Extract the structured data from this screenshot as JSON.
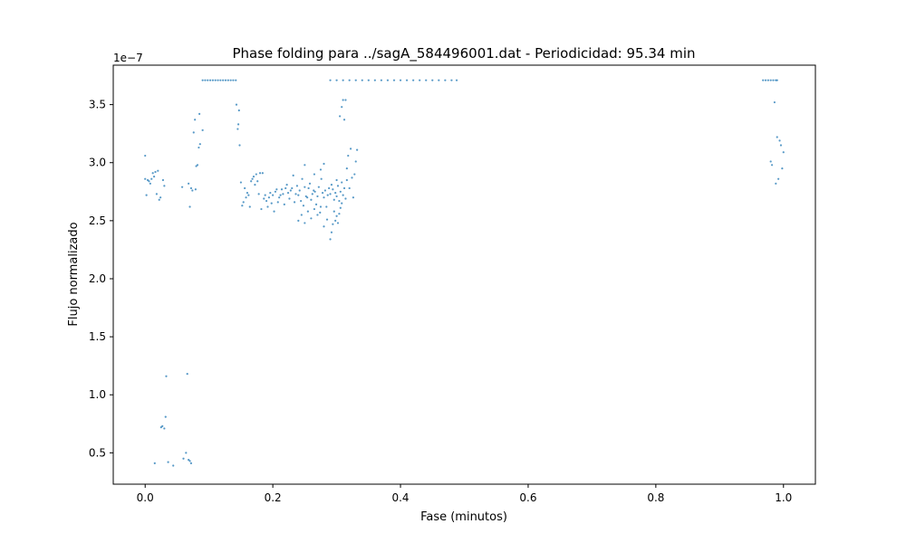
{
  "chart_data": {
    "type": "scatter",
    "title": "Phase folding para ../sagA_584496001.dat - Periodicidad: 95.34 min",
    "xlabel": "Fase (minutos)",
    "ylabel": "Flujo normalizado",
    "y_scale_label": "1e−7",
    "xlim": [
      -0.05,
      1.05
    ],
    "ylim": [
      0.23,
      3.84
    ],
    "x_ticks": [
      0.0,
      0.2,
      0.4,
      0.6,
      0.8,
      1.0
    ],
    "x_tick_labels": [
      "0.0",
      "0.2",
      "0.4",
      "0.6",
      "0.8",
      "1.0"
    ],
    "y_ticks": [
      0.5,
      1.0,
      1.5,
      2.0,
      2.5,
      3.0,
      3.5
    ],
    "y_tick_labels": [
      "0.5",
      "1.0",
      "1.5",
      "2.0",
      "2.5",
      "3.0",
      "3.5"
    ],
    "grid": false,
    "marker_color": "#1f77b4",
    "series": [
      {
        "points": [
          [
            0.0,
            3.06
          ],
          [
            0.0,
            2.86
          ],
          [
            0.002,
            2.72
          ],
          [
            0.004,
            2.85
          ],
          [
            0.006,
            2.84
          ],
          [
            0.008,
            2.82
          ],
          [
            0.01,
            2.86
          ],
          [
            0.012,
            2.91
          ],
          [
            0.014,
            2.88
          ],
          [
            0.016,
            2.92
          ],
          [
            0.018,
            2.73
          ],
          [
            0.02,
            2.93
          ],
          [
            0.022,
            2.68
          ],
          [
            0.024,
            2.7
          ],
          [
            0.028,
            2.85
          ],
          [
            0.03,
            2.8
          ],
          [
            0.015,
            0.41
          ],
          [
            0.025,
            0.72
          ],
          [
            0.027,
            0.73
          ],
          [
            0.03,
            0.71
          ],
          [
            0.032,
            0.81
          ],
          [
            0.033,
            1.16
          ],
          [
            0.036,
            0.42
          ],
          [
            0.044,
            0.39
          ],
          [
            0.058,
            2.79
          ],
          [
            0.06,
            0.45
          ],
          [
            0.064,
            0.5
          ],
          [
            0.066,
            1.18
          ],
          [
            0.068,
            0.44
          ],
          [
            0.07,
            0.43
          ],
          [
            0.072,
            0.41
          ],
          [
            0.068,
            2.82
          ],
          [
            0.07,
            2.62
          ],
          [
            0.072,
            2.78
          ],
          [
            0.074,
            2.76
          ],
          [
            0.076,
            3.26
          ],
          [
            0.078,
            3.37
          ],
          [
            0.079,
            2.77
          ],
          [
            0.08,
            2.97
          ],
          [
            0.082,
            2.98
          ],
          [
            0.084,
            3.13
          ],
          [
            0.085,
            3.42
          ],
          [
            0.086,
            3.16
          ],
          [
            0.09,
            3.28
          ],
          [
            0.09,
            3.71
          ],
          [
            0.094,
            3.71
          ],
          [
            0.098,
            3.71
          ],
          [
            0.102,
            3.71
          ],
          [
            0.106,
            3.71
          ],
          [
            0.11,
            3.71
          ],
          [
            0.114,
            3.71
          ],
          [
            0.118,
            3.71
          ],
          [
            0.122,
            3.71
          ],
          [
            0.126,
            3.71
          ],
          [
            0.13,
            3.71
          ],
          [
            0.134,
            3.71
          ],
          [
            0.138,
            3.71
          ],
          [
            0.142,
            3.71
          ],
          [
            0.143,
            3.5
          ],
          [
            0.145,
            3.29
          ],
          [
            0.146,
            3.33
          ],
          [
            0.147,
            3.45
          ],
          [
            0.148,
            3.15
          ],
          [
            0.15,
            2.83
          ],
          [
            0.152,
            2.63
          ],
          [
            0.154,
            2.66
          ],
          [
            0.156,
            2.78
          ],
          [
            0.158,
            2.7
          ],
          [
            0.16,
            2.74
          ],
          [
            0.162,
            2.72
          ],
          [
            0.164,
            2.62
          ],
          [
            0.166,
            2.84
          ],
          [
            0.168,
            2.86
          ],
          [
            0.17,
            2.88
          ],
          [
            0.172,
            2.81
          ],
          [
            0.174,
            2.9
          ],
          [
            0.176,
            2.84
          ],
          [
            0.178,
            2.73
          ],
          [
            0.18,
            2.91
          ],
          [
            0.182,
            2.6
          ],
          [
            0.184,
            2.91
          ],
          [
            0.186,
            2.69
          ],
          [
            0.188,
            2.72
          ],
          [
            0.19,
            2.67
          ],
          [
            0.192,
            2.62
          ],
          [
            0.194,
            2.7
          ],
          [
            0.196,
            2.74
          ],
          [
            0.198,
            2.65
          ],
          [
            0.2,
            2.72
          ],
          [
            0.202,
            2.58
          ],
          [
            0.204,
            2.75
          ],
          [
            0.206,
            2.77
          ],
          [
            0.208,
            2.66
          ],
          [
            0.21,
            2.7
          ],
          [
            0.212,
            2.72
          ],
          [
            0.214,
            2.77
          ],
          [
            0.216,
            2.73
          ],
          [
            0.218,
            2.64
          ],
          [
            0.22,
            2.78
          ],
          [
            0.222,
            2.81
          ],
          [
            0.224,
            2.74
          ],
          [
            0.226,
            2.69
          ],
          [
            0.228,
            2.76
          ],
          [
            0.23,
            2.78
          ],
          [
            0.232,
            2.89
          ],
          [
            0.234,
            2.66
          ],
          [
            0.236,
            2.73
          ],
          [
            0.238,
            2.8
          ],
          [
            0.24,
            2.72
          ],
          [
            0.242,
            2.76
          ],
          [
            0.244,
            2.67
          ],
          [
            0.246,
            2.86
          ],
          [
            0.248,
            2.63
          ],
          [
            0.25,
            2.79
          ],
          [
            0.252,
            2.71
          ],
          [
            0.254,
            2.7
          ],
          [
            0.256,
            2.78
          ],
          [
            0.258,
            2.82
          ],
          [
            0.26,
            2.68
          ],
          [
            0.262,
            2.73
          ],
          [
            0.264,
            2.76
          ],
          [
            0.266,
            2.75
          ],
          [
            0.268,
            2.64
          ],
          [
            0.27,
            2.71
          ],
          [
            0.272,
            2.79
          ],
          [
            0.274,
            2.57
          ],
          [
            0.276,
            2.86
          ],
          [
            0.278,
            2.74
          ],
          [
            0.28,
            2.7
          ],
          [
            0.282,
            2.76
          ],
          [
            0.284,
            2.62
          ],
          [
            0.286,
            2.72
          ],
          [
            0.288,
            2.78
          ],
          [
            0.29,
            2.73
          ],
          [
            0.292,
            2.81
          ],
          [
            0.294,
            2.77
          ],
          [
            0.296,
            2.68
          ],
          [
            0.298,
            2.74
          ],
          [
            0.3,
            2.71
          ],
          [
            0.302,
            2.8
          ],
          [
            0.304,
            2.67
          ],
          [
            0.306,
            2.75
          ],
          [
            0.308,
            2.83
          ],
          [
            0.31,
            2.72
          ],
          [
            0.312,
            2.78
          ],
          [
            0.314,
            2.69
          ],
          [
            0.316,
            2.85
          ],
          [
            0.24,
            2.5
          ],
          [
            0.245,
            2.55
          ],
          [
            0.25,
            2.48
          ],
          [
            0.255,
            2.58
          ],
          [
            0.26,
            2.52
          ],
          [
            0.265,
            2.6
          ],
          [
            0.27,
            2.55
          ],
          [
            0.275,
            2.62
          ],
          [
            0.28,
            2.45
          ],
          [
            0.285,
            2.51
          ],
          [
            0.29,
            2.34
          ],
          [
            0.292,
            2.4
          ],
          [
            0.294,
            2.47
          ],
          [
            0.296,
            2.58
          ],
          [
            0.298,
            2.5
          ],
          [
            0.3,
            2.54
          ],
          [
            0.302,
            2.48
          ],
          [
            0.304,
            2.56
          ],
          [
            0.306,
            2.61
          ],
          [
            0.308,
            2.65
          ],
          [
            0.25,
            2.98
          ],
          [
            0.265,
            2.9
          ],
          [
            0.275,
            2.94
          ],
          [
            0.28,
            2.99
          ],
          [
            0.3,
            2.85
          ],
          [
            0.305,
            3.4
          ],
          [
            0.308,
            3.48
          ],
          [
            0.31,
            3.54
          ],
          [
            0.312,
            3.37
          ],
          [
            0.314,
            3.54
          ],
          [
            0.316,
            2.95
          ],
          [
            0.318,
            3.06
          ],
          [
            0.32,
            2.78
          ],
          [
            0.322,
            3.12
          ],
          [
            0.324,
            2.87
          ],
          [
            0.326,
            2.7
          ],
          [
            0.328,
            2.9
          ],
          [
            0.33,
            3.01
          ],
          [
            0.332,
            3.11
          ],
          [
            0.29,
            3.71
          ],
          [
            0.3,
            3.71
          ],
          [
            0.31,
            3.71
          ],
          [
            0.32,
            3.71
          ],
          [
            0.33,
            3.71
          ],
          [
            0.34,
            3.71
          ],
          [
            0.35,
            3.71
          ],
          [
            0.36,
            3.71
          ],
          [
            0.37,
            3.71
          ],
          [
            0.38,
            3.71
          ],
          [
            0.39,
            3.71
          ],
          [
            0.4,
            3.71
          ],
          [
            0.41,
            3.71
          ],
          [
            0.42,
            3.71
          ],
          [
            0.43,
            3.71
          ],
          [
            0.44,
            3.71
          ],
          [
            0.45,
            3.71
          ],
          [
            0.46,
            3.71
          ],
          [
            0.47,
            3.71
          ],
          [
            0.48,
            3.71
          ],
          [
            0.488,
            3.71
          ],
          [
            0.968,
            3.71
          ],
          [
            0.972,
            3.71
          ],
          [
            0.976,
            3.71
          ],
          [
            0.98,
            3.71
          ],
          [
            0.984,
            3.71
          ],
          [
            0.988,
            3.71
          ],
          [
            0.99,
            3.71
          ],
          [
            0.98,
            3.01
          ],
          [
            0.982,
            2.98
          ],
          [
            0.986,
            3.52
          ],
          [
            0.988,
            2.82
          ],
          [
            0.99,
            3.22
          ],
          [
            0.992,
            2.86
          ],
          [
            0.994,
            3.19
          ],
          [
            0.996,
            3.15
          ],
          [
            0.998,
            2.95
          ],
          [
            1.0,
            3.09
          ]
        ]
      }
    ]
  }
}
